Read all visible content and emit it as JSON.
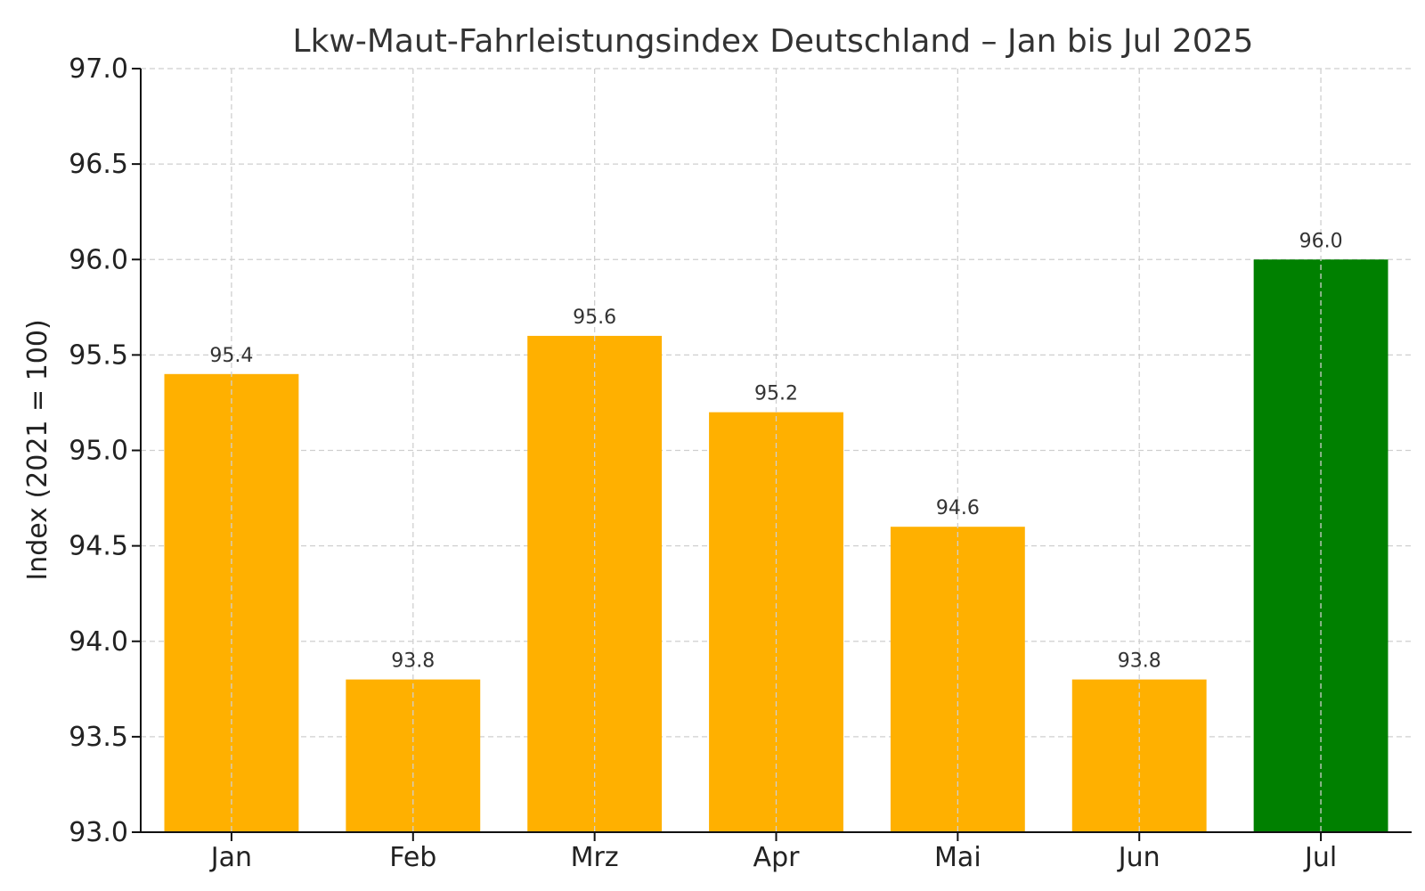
{
  "chart_data": {
    "type": "bar",
    "title": "Lkw-Maut-Fahrleistungsindex Deutschland – Jan bis Jul 2025",
    "xlabel": "",
    "ylabel": "Index (2021 = 100)",
    "categories": [
      "Jan",
      "Feb",
      "Mrz",
      "Apr",
      "Mai",
      "Jun",
      "Jul"
    ],
    "values": [
      95.4,
      93.8,
      95.6,
      95.2,
      94.6,
      93.8,
      96.0
    ],
    "value_labels": [
      "95.4",
      "93.8",
      "95.6",
      "95.2",
      "94.6",
      "93.8",
      "96.0"
    ],
    "ylim": [
      93.0,
      97.0
    ],
    "y_ticks": [
      93.0,
      93.5,
      94.0,
      94.5,
      95.0,
      95.5,
      96.0,
      96.5,
      97.0
    ],
    "y_tick_labels": [
      "93.0",
      "93.5",
      "94.0",
      "94.5",
      "95.0",
      "95.5",
      "96.0",
      "96.5",
      "97.0"
    ],
    "grid": true,
    "colors": {
      "default_bar": "#FFB000",
      "highlight_bar": "#008000",
      "grid": "#cfcfcf",
      "axis": "#111111"
    },
    "highlight_category": "Jul"
  }
}
